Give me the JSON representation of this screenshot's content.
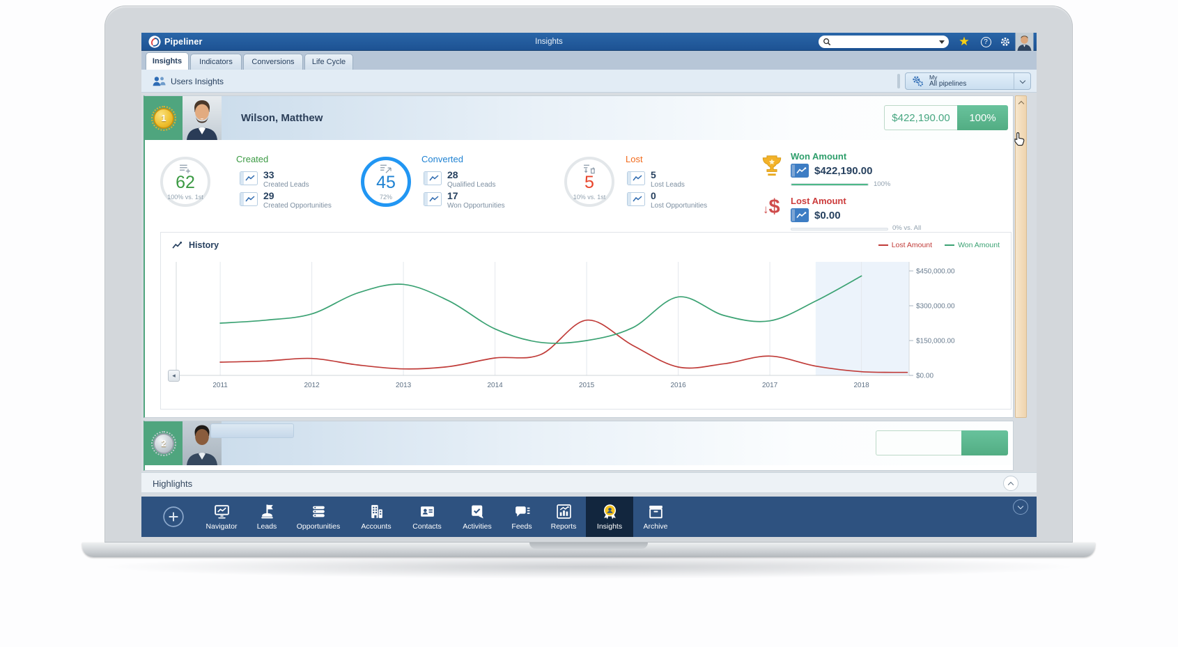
{
  "header": {
    "app_name": "Pipeliner",
    "page_title": "Insights"
  },
  "search": {
    "value": ""
  },
  "tabs": {
    "items": [
      {
        "label": "Insights",
        "active": true
      },
      {
        "label": "Indicators",
        "active": false
      },
      {
        "label": "Conversions",
        "active": false
      },
      {
        "label": "Life Cycle",
        "active": false
      }
    ]
  },
  "toolbar": {
    "section_title": "Users Insights",
    "pipeline_filter": {
      "line1": "My",
      "line2": "All pipelines"
    }
  },
  "leaderboard": {
    "user1": {
      "rank": "1",
      "name": "Wilson, Matthew",
      "total_amount": "$422,190.00",
      "total_percent": "100%",
      "groups": [
        {
          "title": "Created",
          "value": "62",
          "subvalue": "100% vs. 1st",
          "items": [
            {
              "value": "33",
              "label": "Created Leads"
            },
            {
              "value": "29",
              "label": "Created Opportunities"
            }
          ]
        },
        {
          "title": "Converted",
          "value": "45",
          "subvalue": "72%",
          "items": [
            {
              "value": "28",
              "label": "Qualified Leads"
            },
            {
              "value": "17",
              "label": "Won Opportunities"
            }
          ]
        },
        {
          "title": "Lost",
          "value": "5",
          "subvalue": "10% vs. 1st",
          "items": [
            {
              "value": "5",
              "label": "Lost Leads"
            },
            {
              "value": "0",
              "label": "Lost Opportunities"
            }
          ]
        }
      ],
      "won": {
        "title": "Won Amount",
        "value": "$422,190.00",
        "percent": "100%"
      },
      "lost": {
        "title": "Lost Amount",
        "value": "$0.00",
        "percent": "0% vs. All"
      },
      "history_title": "History"
    },
    "user2": {
      "rank": "2"
    }
  },
  "highlights": {
    "title": "Highlights"
  },
  "nav": {
    "items": [
      {
        "label": "Navigator"
      },
      {
        "label": "Leads"
      },
      {
        "label": "Opportunities"
      },
      {
        "label": "Accounts"
      },
      {
        "label": "Contacts"
      },
      {
        "label": "Activities"
      },
      {
        "label": "Feeds"
      },
      {
        "label": "Reports"
      },
      {
        "label": "Insights",
        "active": true
      },
      {
        "label": "Archive"
      }
    ]
  },
  "colors": {
    "header_blue": "#1d5293",
    "nav_blue": "#2e5280",
    "rank_green": "#4fa57e",
    "won_green": "#2e9e6b",
    "lost_red": "#cc3b3b",
    "converted_blue": "#2196f3",
    "created_green": "#3b9a43",
    "lost_orange": "#f26a1b"
  },
  "chart_data": {
    "type": "line",
    "title": "History",
    "x_ticks": [
      2011,
      2012,
      2013,
      2014,
      2015,
      2016,
      2017,
      2018
    ],
    "ylim": [
      0,
      450000
    ],
    "y_ticks": [
      {
        "value": 0,
        "label": "$0.00"
      },
      {
        "value": 150000,
        "label": "$150,000.00"
      },
      {
        "value": 300000,
        "label": "$300,000.00"
      },
      {
        "value": 450000,
        "label": "$450,000.00"
      }
    ],
    "grid": "vertical-only",
    "legend_position": "top-right",
    "highlight_band_x": [
      2017.5,
      2018.52
    ],
    "series": [
      {
        "name": "Lost Amount",
        "color": "#c03b38",
        "x": [
          2011,
          2011.5,
          2012,
          2012.5,
          2013,
          2013.5,
          2014,
          2014.5,
          2015,
          2015.5,
          2016,
          2016.5,
          2017,
          2017.5,
          2018,
          2018.5
        ],
        "values": [
          57000,
          62000,
          73000,
          45000,
          28000,
          38000,
          75000,
          90000,
          238000,
          130000,
          36000,
          50000,
          83000,
          40000,
          16000,
          13000
        ]
      },
      {
        "name": "Won Amount",
        "color": "#3ba273",
        "x": [
          2011,
          2011.5,
          2012,
          2012.5,
          2013,
          2013.5,
          2014,
          2014.5,
          2015,
          2015.5,
          2016,
          2016.5,
          2017,
          2017.5,
          2018
        ],
        "values": [
          225000,
          238000,
          265000,
          355000,
          392000,
          320000,
          200000,
          142000,
          150000,
          205000,
          338000,
          258000,
          235000,
          320000,
          428000
        ]
      }
    ]
  }
}
